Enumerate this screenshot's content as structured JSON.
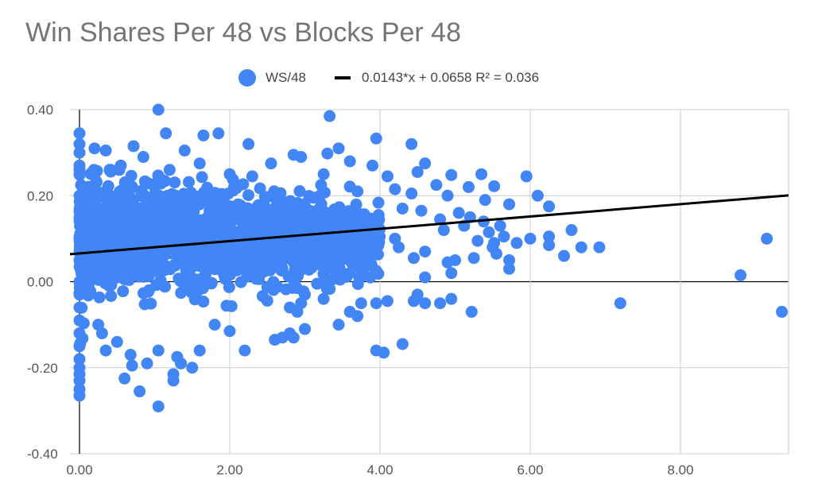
{
  "chart_data": {
    "type": "scatter",
    "title": "Win Shares Per 48 vs Blocks Per 48",
    "xlabel": "",
    "ylabel": "",
    "xlim": [
      0,
      9.5
    ],
    "ylim": [
      -0.4,
      0.4
    ],
    "x_ticks": [
      "0.00",
      "2.00",
      "4.00",
      "6.00",
      "8.00"
    ],
    "x_tick_values": [
      0,
      2,
      4,
      6,
      8
    ],
    "y_ticks": [
      "0.40",
      "0.20",
      "0.00",
      "-0.20",
      "-0.40"
    ],
    "y_tick_values": [
      0.4,
      0.2,
      0,
      -0.2,
      -0.4
    ],
    "grid": true,
    "legend_position": "top",
    "series": [
      {
        "name": "WS/48",
        "color": "#4285f4",
        "points": [
          [
            1.05,
            0.4
          ],
          [
            3.33,
            0.385
          ],
          [
            1.15,
            0.345
          ],
          [
            1.85,
            0.345
          ],
          [
            0.72,
            0.315
          ],
          [
            0.0,
            0.345
          ],
          [
            0.0,
            0.32
          ],
          [
            0.0,
            0.3
          ],
          [
            0.2,
            0.31
          ],
          [
            0.35,
            0.305
          ],
          [
            2.25,
            0.32
          ],
          [
            2.85,
            0.295
          ],
          [
            3.45,
            0.31
          ],
          [
            3.95,
            0.333
          ],
          [
            4.42,
            0.32
          ],
          [
            3.3,
            0.298
          ],
          [
            1.65,
            0.34
          ],
          [
            1.4,
            0.305
          ],
          [
            0.85,
            0.29
          ],
          [
            2.95,
            0.29
          ],
          [
            2.55,
            0.275
          ],
          [
            1.6,
            0.275
          ],
          [
            1.2,
            0.26
          ],
          [
            0.55,
            0.27
          ],
          [
            3.25,
            0.25
          ],
          [
            3.6,
            0.28
          ],
          [
            3.9,
            0.27
          ],
          [
            4.1,
            0.245
          ],
          [
            4.5,
            0.255
          ],
          [
            4.6,
            0.275
          ],
          [
            4.95,
            0.248
          ],
          [
            5.35,
            0.25
          ],
          [
            5.52,
            0.222
          ],
          [
            5.95,
            0.245
          ],
          [
            5.18,
            0.22
          ],
          [
            4.75,
            0.225
          ],
          [
            6.1,
            0.2
          ],
          [
            6.25,
            0.175
          ],
          [
            5.72,
            0.18
          ],
          [
            5.4,
            0.19
          ],
          [
            4.42,
            0.205
          ],
          [
            4.2,
            0.215
          ],
          [
            3.7,
            0.21
          ],
          [
            2.0,
            0.25
          ],
          [
            2.3,
            0.245
          ],
          [
            4.9,
            0.2
          ],
          [
            4.55,
            0.165
          ],
          [
            5.05,
            0.16
          ],
          [
            5.2,
            0.15
          ],
          [
            4.8,
            0.145
          ],
          [
            5.6,
            0.13
          ],
          [
            5.12,
            0.13
          ],
          [
            4.85,
            0.12
          ],
          [
            5.38,
            0.14
          ],
          [
            5.45,
            0.115
          ],
          [
            5.3,
            0.095
          ],
          [
            5.65,
            0.105
          ],
          [
            5.82,
            0.09
          ],
          [
            6.0,
            0.1
          ],
          [
            6.25,
            0.105
          ],
          [
            6.25,
            0.085
          ],
          [
            6.55,
            0.12
          ],
          [
            6.45,
            0.06
          ],
          [
            6.68,
            0.08
          ],
          [
            6.92,
            0.08
          ],
          [
            5.55,
            0.065
          ],
          [
            5.52,
            0.09
          ],
          [
            5.72,
            0.05
          ],
          [
            5.25,
            0.055
          ],
          [
            5.72,
            0.03
          ],
          [
            5.0,
            0.05
          ],
          [
            4.9,
            0.045
          ],
          [
            4.6,
            0.07
          ],
          [
            4.45,
            0.055
          ],
          [
            4.25,
            0.08
          ],
          [
            5.5,
            0.08
          ],
          [
            4.95,
            0.02
          ],
          [
            4.6,
            0.01
          ],
          [
            3.95,
            0.025
          ],
          [
            3.7,
            0.05
          ],
          [
            5.22,
            -0.07
          ],
          [
            4.95,
            -0.04
          ],
          [
            4.8,
            -0.05
          ],
          [
            4.6,
            -0.05
          ],
          [
            4.45,
            -0.045
          ],
          [
            4.5,
            -0.03
          ],
          [
            4.1,
            -0.045
          ],
          [
            3.95,
            -0.05
          ],
          [
            3.75,
            -0.05
          ],
          [
            3.6,
            -0.07
          ],
          [
            3.7,
            -0.08
          ],
          [
            3.45,
            -0.1
          ],
          [
            3.25,
            -0.04
          ],
          [
            3.0,
            -0.03
          ],
          [
            2.95,
            -0.05
          ],
          [
            2.8,
            -0.06
          ],
          [
            2.9,
            -0.07
          ],
          [
            3.0,
            -0.11
          ],
          [
            2.8,
            -0.12
          ],
          [
            2.85,
            -0.13
          ],
          [
            2.7,
            -0.13
          ],
          [
            2.6,
            -0.135
          ],
          [
            4.3,
            -0.145
          ],
          [
            4.05,
            -0.165
          ],
          [
            3.95,
            -0.16
          ],
          [
            2.2,
            -0.16
          ],
          [
            2.0,
            -0.115
          ],
          [
            1.8,
            -0.1
          ],
          [
            1.6,
            -0.16
          ],
          [
            1.5,
            -0.2
          ],
          [
            1.35,
            -0.19
          ],
          [
            1.25,
            -0.215
          ],
          [
            1.3,
            -0.175
          ],
          [
            1.25,
            -0.23
          ],
          [
            1.05,
            -0.29
          ],
          [
            0.8,
            -0.255
          ],
          [
            0.6,
            -0.225
          ],
          [
            0.7,
            -0.195
          ],
          [
            0.68,
            -0.17
          ],
          [
            0.9,
            -0.19
          ],
          [
            1.05,
            -0.16
          ],
          [
            0.3,
            -0.12
          ],
          [
            0.25,
            -0.1
          ],
          [
            0.35,
            -0.16
          ],
          [
            0.5,
            -0.14
          ],
          [
            7.2,
            -0.05
          ],
          [
            8.8,
            0.015
          ],
          [
            9.15,
            0.1
          ],
          [
            9.35,
            -0.07
          ],
          [
            0.0,
            -0.2
          ],
          [
            0.0,
            -0.23
          ],
          [
            0.0,
            -0.25
          ],
          [
            0.0,
            -0.265
          ],
          [
            0.0,
            -0.215
          ],
          [
            0.0,
            -0.18
          ],
          [
            0.0,
            -0.15
          ],
          [
            0.0,
            -0.12
          ],
          [
            0.0,
            -0.09
          ],
          [
            0.0,
            -0.06
          ],
          [
            0.0,
            -0.03
          ],
          [
            0.0,
            0.0
          ],
          [
            0.0,
            0.05
          ],
          [
            0.0,
            0.1
          ],
          [
            0.0,
            0.15
          ],
          [
            0.0,
            0.2
          ],
          [
            0.0,
            0.25
          ],
          [
            0.0,
            0.27
          ],
          [
            2.4,
            0.15
          ],
          [
            2.8,
            0.12
          ],
          [
            3.2,
            0.2
          ],
          [
            3.5,
            0.15
          ],
          [
            3.0,
            0.09
          ],
          [
            2.6,
            0.05
          ],
          [
            1.8,
            0.05
          ],
          [
            1.4,
            0.0
          ],
          [
            1.2,
            0.1
          ],
          [
            0.8,
            0.15
          ],
          [
            0.5,
            0.05
          ],
          [
            0.3,
            0.2
          ],
          [
            1.0,
            0.22
          ],
          [
            1.6,
            0.18
          ],
          [
            2.0,
            0.12
          ],
          [
            3.8,
            0.12
          ],
          [
            4.2,
            0.1
          ],
          [
            4.3,
            0.17
          ],
          [
            3.6,
            0.02
          ],
          [
            3.3,
            0.0
          ]
        ]
      }
    ],
    "trendline": {
      "label": "0.0143*x + 0.0658 R² = 0.036",
      "slope": 0.0143,
      "intercept": 0.0658,
      "color": "#000000"
    },
    "dense_region": {
      "x_range": [
        0.0,
        4.0
      ],
      "y_center": 0.1,
      "y_spread": 0.07
    }
  }
}
